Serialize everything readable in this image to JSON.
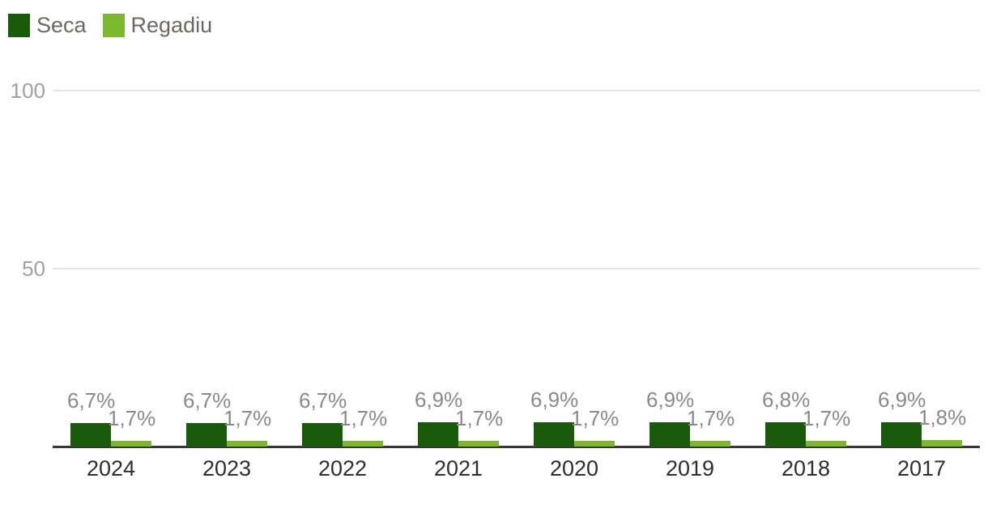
{
  "legend": {
    "items": [
      {
        "label": "Seca"
      },
      {
        "label": "Regadiu"
      }
    ]
  },
  "chart_data": {
    "type": "bar",
    "title": "",
    "xlabel": "",
    "ylabel": "",
    "categories": [
      "2024",
      "2023",
      "2022",
      "2021",
      "2020",
      "2019",
      "2018",
      "2017"
    ],
    "series": [
      {
        "name": "Seca",
        "color": "#1a5a0b",
        "values": [
          6.7,
          6.7,
          6.7,
          6.9,
          6.9,
          6.9,
          6.8,
          6.9
        ],
        "labels": [
          "6,7%",
          "6,7%",
          "6,7%",
          "6,9%",
          "6,9%",
          "6,9%",
          "6,8%",
          "6,9%"
        ]
      },
      {
        "name": "Regadiu",
        "color": "#7cb82e",
        "values": [
          1.7,
          1.7,
          1.7,
          1.7,
          1.7,
          1.7,
          1.7,
          1.8
        ],
        "labels": [
          "1,7%",
          "1,7%",
          "1,7%",
          "1,7%",
          "1,7%",
          "1,7%",
          "1,7%",
          "1,8%"
        ]
      }
    ],
    "ylim": [
      0,
      100
    ],
    "yticks": [
      {
        "value": 50,
        "label": "50"
      },
      {
        "value": 100,
        "label": "100"
      }
    ],
    "grid": true,
    "legend_position": "top-left",
    "colors": {
      "background": "#ffffff",
      "axis_line": "#383838",
      "gridline": "#e4e4e4",
      "tick_label": "#a0a0a0",
      "value_label": "#8a8a8a",
      "category_label": "#2e2e2e",
      "legend_text": "#6e6861"
    }
  }
}
